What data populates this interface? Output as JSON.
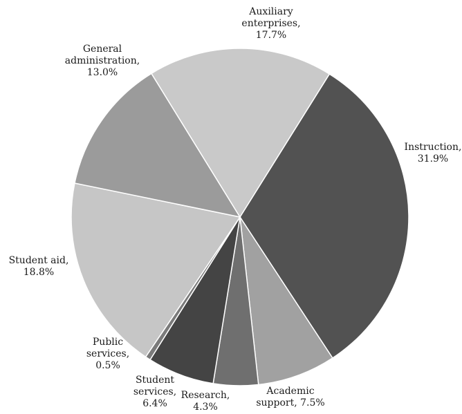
{
  "chart_data": {
    "type": "pie",
    "title": "",
    "start_angle_deg": 32,
    "direction": "clockwise",
    "slices": [
      {
        "category": "Instruction",
        "value": 31.9,
        "value_label": "31.9%",
        "label_lines": [
          "Instruction,",
          "31.9%"
        ],
        "color": "#525252"
      },
      {
        "category": "Academic support",
        "value": 7.5,
        "value_label": "7.5%",
        "label_lines": [
          "Academic",
          "support, 7.5%"
        ],
        "color": "#a1a1a1"
      },
      {
        "category": "Research",
        "value": 4.3,
        "value_label": "4.3%",
        "label_lines": [
          "Research,",
          "4.3%"
        ],
        "color": "#6f6f6f"
      },
      {
        "category": "Student services",
        "value": 6.4,
        "value_label": "6.4%",
        "label_lines": [
          "Student",
          "services,",
          "6.4%"
        ],
        "color": "#444444"
      },
      {
        "category": "Public services",
        "value": 0.5,
        "value_label": "0.5%",
        "label_lines": [
          "Public",
          "services,",
          "0.5%"
        ],
        "color": "#7a7a7a"
      },
      {
        "category": "Student aid",
        "value": 18.8,
        "value_label": "18.8%",
        "label_lines": [
          "Student aid,",
          "18.8%"
        ],
        "color": "#c6c6c6"
      },
      {
        "category": "General administration",
        "value": 13.0,
        "value_label": "13.0%",
        "label_lines": [
          "General",
          "administration,",
          "13.0%"
        ],
        "color": "#9b9b9b"
      },
      {
        "category": "Auxiliary enterprises",
        "value": 17.7,
        "value_label": "17.7%",
        "label_lines": [
          "Auxiliary",
          "enterprises,",
          "17.7%"
        ],
        "color": "#c9c9c9"
      }
    ]
  }
}
